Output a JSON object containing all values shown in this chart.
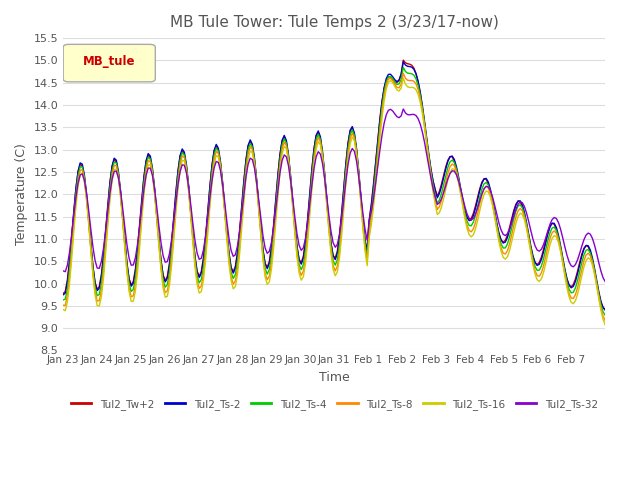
{
  "title": "MB Tule Tower: Tule Temps 2 (3/23/17-now)",
  "xlabel": "Time",
  "ylabel": "Temperature (C)",
  "ylim": [
    8.5,
    15.5
  ],
  "yticks": [
    8.5,
    9.0,
    9.5,
    10.0,
    10.5,
    11.0,
    11.5,
    12.0,
    12.5,
    13.0,
    13.5,
    14.0,
    14.5,
    15.0,
    15.5
  ],
  "xtick_labels": [
    "Jan 23",
    "Jan 24",
    "Jan 25",
    "Jan 26",
    "Jan 27",
    "Jan 28",
    "Jan 29",
    "Jan 30",
    "Jan 31",
    "Feb 1",
    "Feb 2",
    "Feb 3",
    "Feb 4",
    "Feb 5",
    "Feb 6",
    "Feb 7"
  ],
  "legend_label": "MB_tule",
  "series_labels": [
    "Tul2_Tw+2",
    "Tul2_Ts-2",
    "Tul2_Ts-4",
    "Tul2_Ts-8",
    "Tul2_Ts-16",
    "Tul2_Ts-32"
  ],
  "series_colors": [
    "#cc0000",
    "#0000cc",
    "#00cc00",
    "#ff8800",
    "#cccc00",
    "#8800cc"
  ],
  "background_color": "#ffffff",
  "grid_color": "#dddddd",
  "title_color": "#555555"
}
